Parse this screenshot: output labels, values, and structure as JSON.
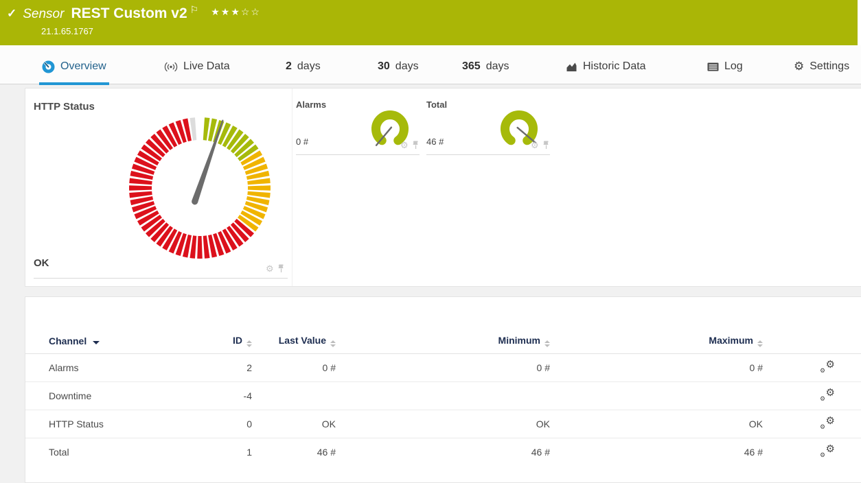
{
  "header": {
    "check_icon": "✓",
    "kind_label": "Sensor",
    "title": "REST Custom v2",
    "flag_icon": "⚐",
    "rating_stars": "★★★☆☆",
    "rating_filled": 3,
    "rating_total": 5,
    "subtitle": "21.1.65.1767",
    "bg_color": "#aab606"
  },
  "tabs": {
    "overview": "Overview",
    "live_data": "Live Data",
    "d2_num": "2",
    "d2_label": "days",
    "d30_num": "30",
    "d30_label": "days",
    "d365_num": "365",
    "d365_label": "days",
    "historic": "Historic Data",
    "log": "Log",
    "settings": "Settings"
  },
  "panels": {
    "http_status": {
      "title": "HTTP Status",
      "status": "OK"
    },
    "alarms": {
      "title": "Alarms",
      "value": "0 #"
    },
    "total": {
      "title": "Total",
      "value": "46 #"
    }
  },
  "table": {
    "columns": [
      "Channel",
      "ID",
      "Last Value",
      "Minimum",
      "Maximum"
    ],
    "rows": [
      {
        "channel": "Alarms",
        "id": "2",
        "last": "0 #",
        "min": "0 #",
        "max": "0 #"
      },
      {
        "channel": "Downtime",
        "id": "-4",
        "last": "",
        "min": "",
        "max": ""
      },
      {
        "channel": "HTTP Status",
        "id": "0",
        "last": "OK",
        "min": "OK",
        "max": "OK"
      },
      {
        "channel": "Total",
        "id": "1",
        "last": "46 #",
        "min": "46 #",
        "max": "46 #"
      }
    ]
  },
  "chart_data": [
    {
      "type": "gauge",
      "title": "HTTP Status",
      "status_value": "OK",
      "tick_step": 6,
      "tick_halfwidth": 2.1,
      "outer_radius": 103,
      "inner_radius": 70,
      "skip_angles": [
        0
      ],
      "needle_deg": 19,
      "needle_color": "#6c6c6c",
      "segments": [
        {
          "from": 1,
          "to": 57,
          "color": "#a6ba0b"
        },
        {
          "from": 57,
          "to": 129,
          "color": "#f0b400"
        },
        {
          "from": 129,
          "to": 351,
          "color": "#dc111c"
        },
        {
          "from": 351,
          "to": 359,
          "color": "#dcdcdc"
        }
      ]
    },
    {
      "type": "gauge",
      "title": "Alarms",
      "value": "0 #",
      "needle_deg": 220,
      "arc_color": "#a6ba0b",
      "needle_color": "#6a6a6a"
    },
    {
      "type": "gauge",
      "title": "Total",
      "value": "46 #",
      "needle_deg": 130,
      "arc_color": "#a6ba0b",
      "needle_color": "#6a6a6a"
    }
  ],
  "colors": {
    "accent_green": "#aab606",
    "gauge_green": "#a6ba0b",
    "gauge_yellow": "#f0b400",
    "gauge_red": "#dc111c",
    "active_tab_blue": "#2196d4",
    "table_header_navy": "#1d2d50"
  }
}
